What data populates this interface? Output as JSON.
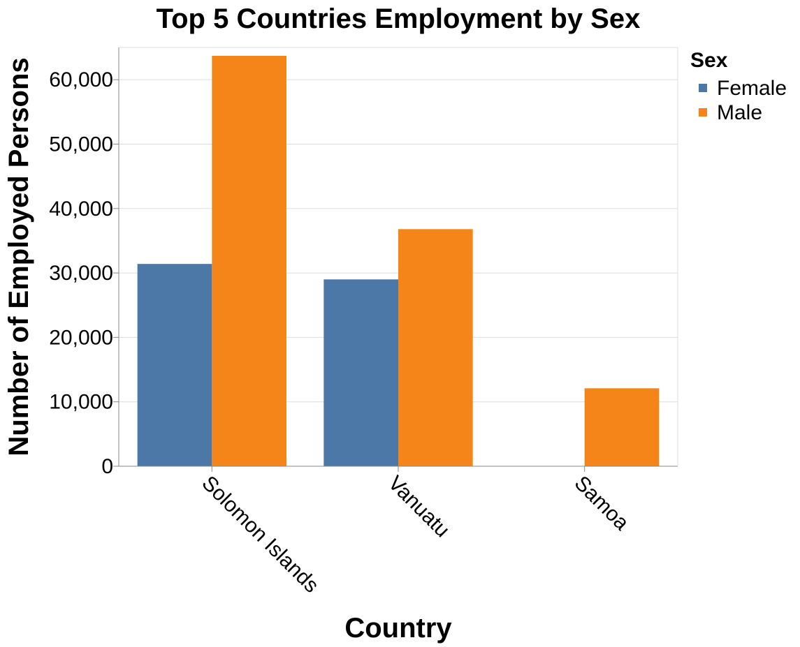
{
  "chart_data": {
    "type": "bar",
    "title": "Top 5 Countries Employment by Sex",
    "xlabel": "Country",
    "ylabel": "Number of Employed Persons",
    "categories": [
      "Solomon Islands",
      "Vanuatu",
      "Samoa"
    ],
    "series": [
      {
        "name": "Female",
        "color": "#4c78a8",
        "values": [
          31400,
          29000,
          0
        ]
      },
      {
        "name": "Male",
        "color": "#f58518",
        "values": [
          63700,
          36800,
          12100
        ]
      }
    ],
    "ylim": [
      0,
      65000
    ],
    "yticks": [
      0,
      10000,
      20000,
      30000,
      40000,
      50000,
      60000
    ],
    "ytick_labels": [
      "0",
      "10,000",
      "20,000",
      "30,000",
      "40,000",
      "50,000",
      "60,000"
    ],
    "grid": true,
    "legend": {
      "title": "Sex",
      "position": "top-right"
    }
  }
}
